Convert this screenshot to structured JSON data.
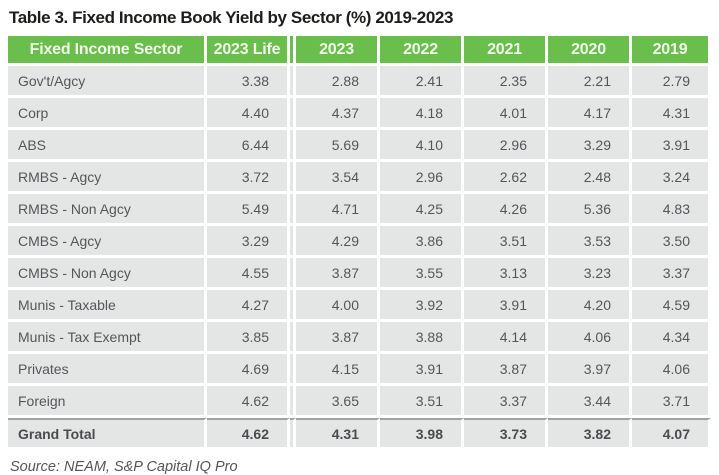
{
  "title": "Table 3. Fixed Income Book Yield by Sector (%) 2019-2023",
  "source": "Source: NEAM, S&P Capital IQ Pro",
  "colors": {
    "header_bg": "#6abe4b",
    "header_text": "#f2faec",
    "row_bg": "#e3e6e4",
    "cell_text": "#55565a",
    "total_text": "#4b4c4f",
    "total_divider": "#a0a3a4",
    "grid_lines": "#ffffff"
  },
  "chart_data": {
    "type": "table",
    "title": "Table 3. Fixed Income Book Yield by Sector (%) 2019-2023",
    "columns": [
      "Fixed Income Sector",
      "2023 Life",
      "2023",
      "2022",
      "2021",
      "2020",
      "2019"
    ],
    "rows": [
      {
        "sector": "Gov't/Agcy",
        "values": [
          "3.38",
          "2.88",
          "2.41",
          "2.35",
          "2.21",
          "2.79"
        ],
        "is_total": false
      },
      {
        "sector": "Corp",
        "values": [
          "4.40",
          "4.37",
          "4.18",
          "4.01",
          "4.17",
          "4.31"
        ],
        "is_total": false
      },
      {
        "sector": "ABS",
        "values": [
          "6.44",
          "5.69",
          "4.10",
          "2.96",
          "3.29",
          "3.91"
        ],
        "is_total": false
      },
      {
        "sector": "RMBS - Agcy",
        "values": [
          "3.72",
          "3.54",
          "2.96",
          "2.62",
          "2.48",
          "3.24"
        ],
        "is_total": false
      },
      {
        "sector": "RMBS - Non Agcy",
        "values": [
          "5.49",
          "4.71",
          "4.25",
          "4.26",
          "5.36",
          "4.83"
        ],
        "is_total": false
      },
      {
        "sector": "CMBS - Agcy",
        "values": [
          "3.29",
          "4.29",
          "3.86",
          "3.51",
          "3.53",
          "3.50"
        ],
        "is_total": false
      },
      {
        "sector": "CMBS - Non Agcy",
        "values": [
          "4.55",
          "3.87",
          "3.55",
          "3.13",
          "3.23",
          "3.37"
        ],
        "is_total": false
      },
      {
        "sector": "Munis - Taxable",
        "values": [
          "4.27",
          "4.00",
          "3.92",
          "3.91",
          "4.20",
          "4.59"
        ],
        "is_total": false
      },
      {
        "sector": "Munis - Tax Exempt",
        "values": [
          "3.85",
          "3.87",
          "3.88",
          "4.14",
          "4.06",
          "4.34"
        ],
        "is_total": false
      },
      {
        "sector": "Privates",
        "values": [
          "4.69",
          "4.15",
          "3.91",
          "3.87",
          "3.97",
          "4.06"
        ],
        "is_total": false
      },
      {
        "sector": "Foreign",
        "values": [
          "4.62",
          "3.65",
          "3.51",
          "3.37",
          "3.44",
          "3.71"
        ],
        "is_total": false
      },
      {
        "sector": "Grand Total",
        "values": [
          "4.62",
          "4.31",
          "3.98",
          "3.73",
          "3.82",
          "4.07"
        ],
        "is_total": true
      }
    ]
  }
}
